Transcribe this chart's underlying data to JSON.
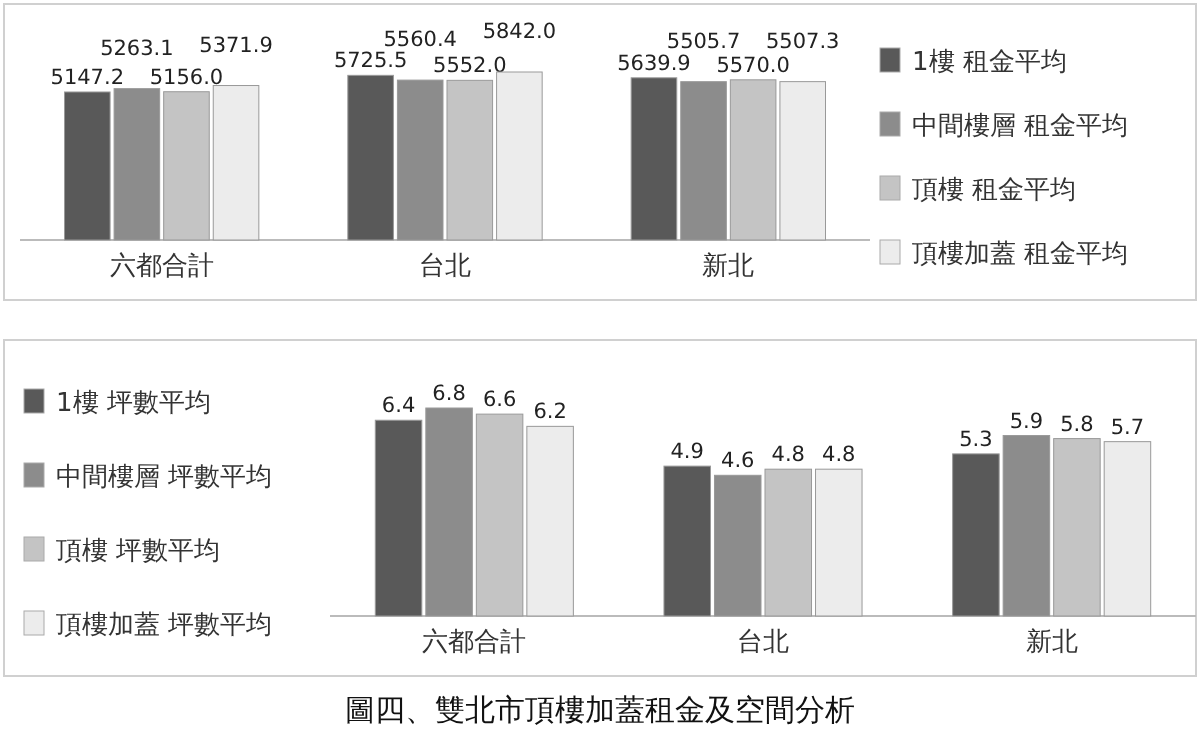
{
  "chart_data": [
    {
      "type": "bar",
      "categories": [
        "六都合計",
        "台北",
        "新北"
      ],
      "legend": "right",
      "series": [
        {
          "name": "1樓 租金平均",
          "color": "#595959",
          "values": [
            5147.2,
            5725.5,
            5639.9
          ],
          "value_labels": [
            "5147.2",
            "5725.5",
            "5639.9"
          ]
        },
        {
          "name": "中間樓層 租金平均",
          "color": "#8c8c8c",
          "values": [
            5263.1,
            5560.4,
            5505.7
          ],
          "value_labels": [
            "5263.1",
            "5560.4",
            "5505.7"
          ]
        },
        {
          "name": "頂樓 租金平均",
          "color": "#c4c4c4",
          "values": [
            5156.0,
            5552.0,
            5570.0
          ],
          "value_labels": [
            "5156.0",
            "5552.0",
            "5570.0"
          ]
        },
        {
          "name": "頂樓加蓋 租金平均",
          "color": "#ececec",
          "values": [
            5371.9,
            5842.0,
            5507.3
          ],
          "value_labels": [
            "5371.9",
            "5842.0",
            "5507.3"
          ]
        }
      ]
    },
    {
      "type": "bar",
      "categories": [
        "六都合計",
        "台北",
        "新北"
      ],
      "data_labels": true,
      "legend": "left",
      "annotations": [
        "圖四、雙北市頂樓加蓋租金及空間分析"
      ],
      "series": [
        {
          "name": "1樓 坪數平均",
          "color": "#595959",
          "values": [
            6.4,
            4.9,
            5.3
          ]
        },
        {
          "name": "中間樓層 坪數平均",
          "color": "#8c8c8c",
          "values": [
            6.8,
            4.6,
            5.9
          ]
        },
        {
          "name": "頂樓 坪數平均",
          "color": "#c4c4c4",
          "values": [
            6.6,
            4.8,
            5.8
          ]
        },
        {
          "name": "頂樓加蓋 坪數平均",
          "color": "#ececec",
          "values": [
            6.2,
            4.8,
            5.7
          ]
        }
      ]
    }
  ]
}
